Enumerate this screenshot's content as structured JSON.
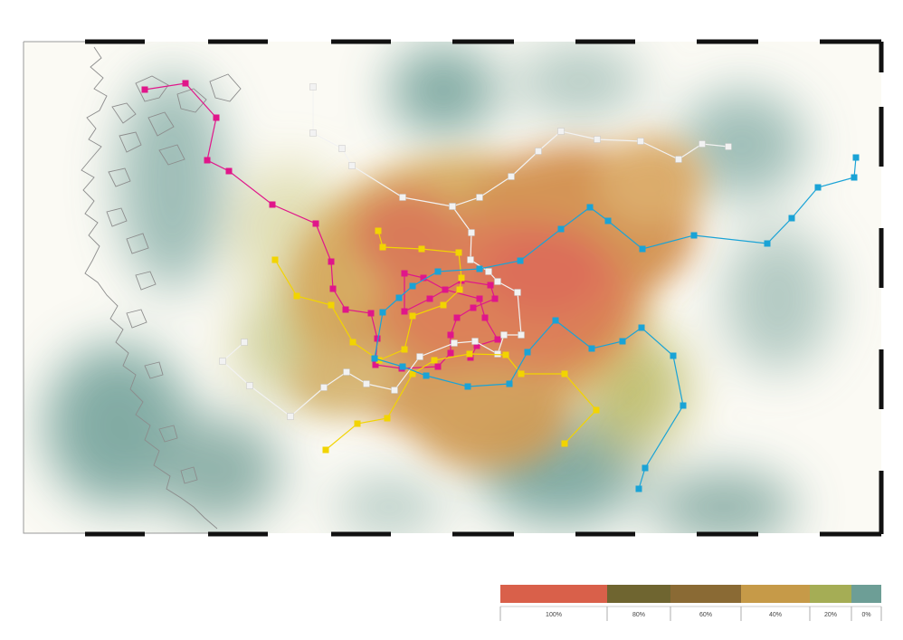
{
  "legend": {
    "items": [
      {
        "label": "100%",
        "color": "#d9604a"
      },
      {
        "label": "80%",
        "color": "#6f6530"
      },
      {
        "label": "60%",
        "color": "#8a6a34"
      },
      {
        "label": "40%",
        "color": "#c69a48"
      },
      {
        "label": "20%",
        "color": "#a5ad55"
      },
      {
        "label": "0%",
        "color": "#6d9e96"
      }
    ]
  },
  "routes": [
    {
      "name": "",
      "color": "#e0168a"
    },
    {
      "name": "",
      "color": "#f2f2f2"
    },
    {
      "name": "",
      "color": "#f2d400"
    },
    {
      "name": "",
      "color": "#1aa3d6"
    }
  ]
}
